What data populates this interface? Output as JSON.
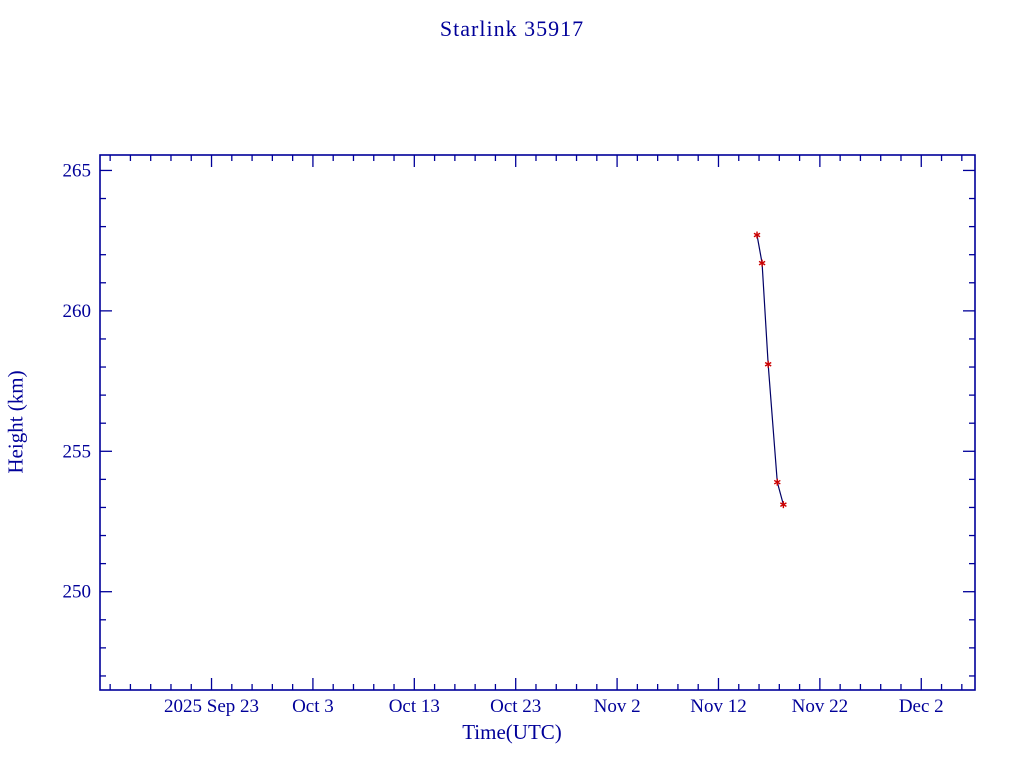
{
  "colors": {
    "text": "#000099",
    "axis": "#000099",
    "line": "#000066",
    "marker": "#cc0000",
    "background": "#ffffff"
  },
  "chart_data": {
    "type": "line",
    "title": "Starlink 35917",
    "xlabel": "Time(UTC)",
    "ylabel": "Height (km)",
    "grid": false,
    "x_tick_labels": [
      "2025 Sep 23",
      "Oct 3",
      "Oct 13",
      "Oct 23",
      "Nov 2",
      "Nov 12",
      "Nov 22",
      "Dec 2"
    ],
    "x_tick_days": [
      0,
      10,
      20,
      30,
      40,
      50,
      60,
      70
    ],
    "x_minor_step_days": 2,
    "y_ticks": [
      250,
      255,
      260,
      265
    ],
    "y_minor_step": 1,
    "xlim_days": [
      -11,
      75.3
    ],
    "ylim": [
      246.5,
      265.55
    ],
    "x_epoch": "2025 Sep 23",
    "series": [
      {
        "name": "height",
        "marker": "asterisk",
        "points": [
          {
            "date": "2025 Nov 16",
            "day": 53.8,
            "height_km": 262.7
          },
          {
            "date": "2025 Nov 16",
            "day": 54.3,
            "height_km": 261.7
          },
          {
            "date": "2025 Nov 17",
            "day": 54.9,
            "height_km": 258.1
          },
          {
            "date": "2025 Nov 18",
            "day": 55.8,
            "height_km": 253.9
          },
          {
            "date": "2025 Nov 18",
            "day": 56.4,
            "height_km": 253.1
          }
        ]
      }
    ]
  }
}
